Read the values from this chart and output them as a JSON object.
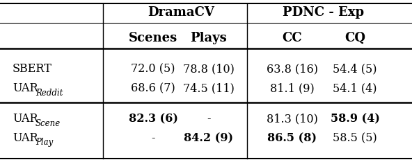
{
  "rows": [
    {
      "label": "SBERT",
      "label_sub": null,
      "label_sub_italic": false,
      "values": [
        "72.0 (5)",
        "78.8 (10)",
        "63.8 (16)",
        "54.4 (5)"
      ],
      "bold": [
        false,
        false,
        false,
        false
      ]
    },
    {
      "label": "UAR",
      "label_sub": "Reddit",
      "label_sub_italic": true,
      "values": [
        "68.6 (7)",
        "74.5 (11)",
        "81.1 (9)",
        "54.1 (4)"
      ],
      "bold": [
        false,
        false,
        false,
        false
      ]
    },
    {
      "label": "UAR",
      "label_sub": "Scene",
      "label_sub_italic": true,
      "values": [
        "82.3 (6)",
        "-",
        "81.3 (10)",
        "58.9 (4)"
      ],
      "bold": [
        true,
        false,
        false,
        true
      ]
    },
    {
      "label": "UAR",
      "label_sub": "Play",
      "label_sub_italic": true,
      "values": [
        "-",
        "84.2 (9)",
        "86.5 (8)",
        "58.5 (5)"
      ],
      "bold": [
        false,
        true,
        true,
        false
      ]
    }
  ],
  "background_color": "#ffffff",
  "font_size": 11.5,
  "header_font_size": 13
}
